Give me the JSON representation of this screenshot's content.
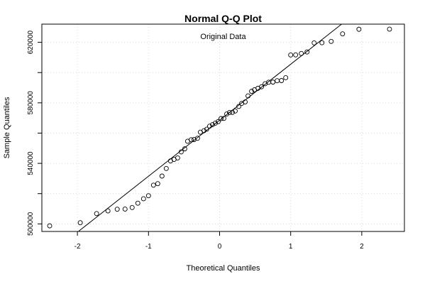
{
  "chart_data": {
    "type": "scatter",
    "title": "Normal Q-Q Plot",
    "subtitle": "Original Data",
    "xlabel": "Theoretical Quantiles",
    "ylabel": "Sample Quantiles",
    "xlim": [
      -2.5,
      2.6
    ],
    "ylim": [
      495000,
      632000
    ],
    "x_ticks": [
      -2,
      -1,
      0,
      1,
      2
    ],
    "x_tick_labels": [
      "-2",
      "-1",
      "0",
      "1",
      "2"
    ],
    "y_ticks": [
      500000,
      540000,
      580000,
      620000
    ],
    "y_tick_labels": [
      "500000",
      "540000",
      "580000",
      "620000"
    ],
    "y_minor_ticks": [
      520000,
      560000,
      600000
    ],
    "grid": true,
    "reference_line": {
      "intercept": 568500,
      "slope": 37000
    },
    "points": [
      {
        "x": -2.39,
        "y": 498700
      },
      {
        "x": -1.96,
        "y": 500800
      },
      {
        "x": -1.73,
        "y": 506800
      },
      {
        "x": -1.57,
        "y": 508600
      },
      {
        "x": -1.44,
        "y": 509700
      },
      {
        "x": -1.33,
        "y": 509800
      },
      {
        "x": -1.23,
        "y": 510800
      },
      {
        "x": -1.15,
        "y": 513700
      },
      {
        "x": -1.07,
        "y": 516600
      },
      {
        "x": -1.0,
        "y": 518600
      },
      {
        "x": -0.93,
        "y": 525600
      },
      {
        "x": -0.87,
        "y": 526600
      },
      {
        "x": -0.81,
        "y": 531600
      },
      {
        "x": -0.75,
        "y": 536600
      },
      {
        "x": -0.69,
        "y": 541600
      },
      {
        "x": -0.64,
        "y": 542600
      },
      {
        "x": -0.59,
        "y": 543600
      },
      {
        "x": -0.54,
        "y": 547600
      },
      {
        "x": -0.49,
        "y": 549600
      },
      {
        "x": -0.45,
        "y": 554600
      },
      {
        "x": -0.4,
        "y": 555600
      },
      {
        "x": -0.36,
        "y": 555700
      },
      {
        "x": -0.31,
        "y": 556600
      },
      {
        "x": -0.27,
        "y": 560600
      },
      {
        "x": -0.22,
        "y": 561600
      },
      {
        "x": -0.18,
        "y": 562600
      },
      {
        "x": -0.14,
        "y": 564600
      },
      {
        "x": -0.1,
        "y": 565600
      },
      {
        "x": -0.06,
        "y": 566600
      },
      {
        "x": -0.02,
        "y": 567600
      },
      {
        "x": 0.02,
        "y": 569600
      },
      {
        "x": 0.06,
        "y": 569700
      },
      {
        "x": 0.1,
        "y": 572600
      },
      {
        "x": 0.14,
        "y": 573600
      },
      {
        "x": 0.18,
        "y": 573700
      },
      {
        "x": 0.22,
        "y": 574600
      },
      {
        "x": 0.27,
        "y": 577600
      },
      {
        "x": 0.31,
        "y": 579600
      },
      {
        "x": 0.36,
        "y": 580600
      },
      {
        "x": 0.4,
        "y": 584600
      },
      {
        "x": 0.45,
        "y": 587600
      },
      {
        "x": 0.49,
        "y": 588600
      },
      {
        "x": 0.54,
        "y": 589600
      },
      {
        "x": 0.59,
        "y": 590600
      },
      {
        "x": 0.64,
        "y": 592600
      },
      {
        "x": 0.69,
        "y": 593600
      },
      {
        "x": 0.75,
        "y": 593700
      },
      {
        "x": 0.81,
        "y": 594600
      },
      {
        "x": 0.87,
        "y": 594700
      },
      {
        "x": 0.93,
        "y": 596600
      },
      {
        "x": 1.0,
        "y": 611600
      },
      {
        "x": 1.07,
        "y": 611700
      },
      {
        "x": 1.15,
        "y": 612600
      },
      {
        "x": 1.23,
        "y": 613600
      },
      {
        "x": 1.33,
        "y": 619600
      },
      {
        "x": 1.44,
        "y": 619700
      },
      {
        "x": 1.57,
        "y": 620600
      },
      {
        "x": 1.73,
        "y": 625600
      },
      {
        "x": 1.96,
        "y": 628600
      },
      {
        "x": 2.39,
        "y": 628700
      }
    ]
  },
  "colors": {
    "background": "#ffffff",
    "foreground": "#000000",
    "grid": "#d8d8d8"
  }
}
